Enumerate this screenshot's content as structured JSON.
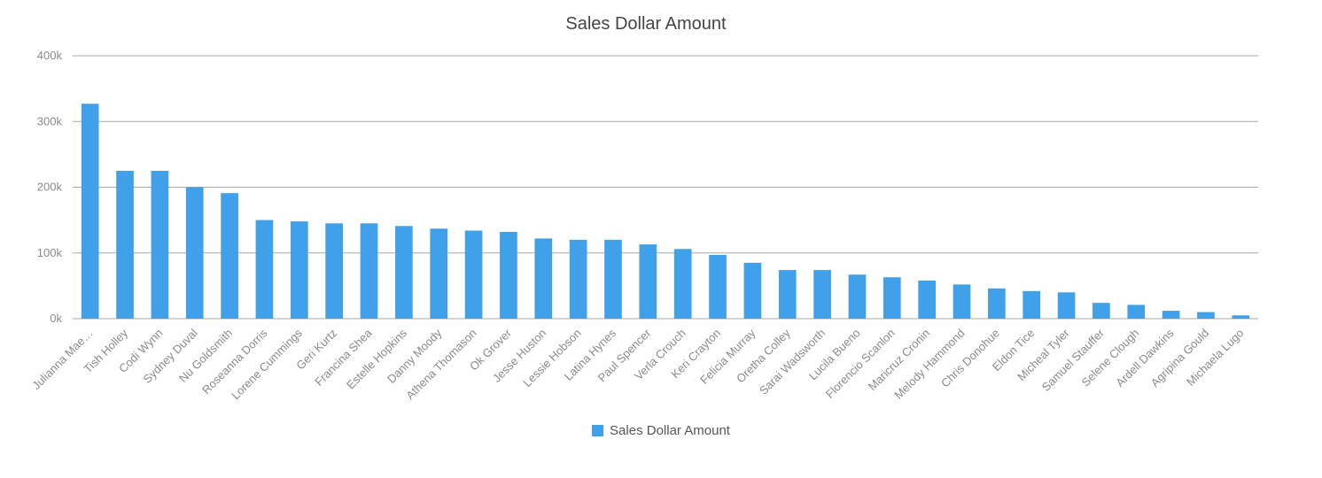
{
  "chart_data": {
    "type": "bar",
    "title": "Sales Dollar Amount",
    "xlabel": "",
    "ylabel": "",
    "ylim": [
      0,
      400000
    ],
    "yticks": [
      0,
      100000,
      200000,
      300000,
      400000
    ],
    "ytick_labels": [
      "0k",
      "100k",
      "200k",
      "300k",
      "400k"
    ],
    "grid": true,
    "legend_position": "bottom",
    "categories": [
      "Julianna Mae…",
      "Tish Holley",
      "Codi Wynn",
      "Sydney Duval",
      "Nu Goldsmith",
      "Roseanna Dorris",
      "Lorene Cummings",
      "Geri Kurtz",
      "Francina Shea",
      "Estelle Hopkins",
      "Danny Moody",
      "Athena Thomason",
      "Ok Grover",
      "Jesse Huston",
      "Lessie Hobson",
      "Latina Hynes",
      "Paul Spencer",
      "Verla Crouch",
      "Keri Crayton",
      "Felicia Murray",
      "Oretha Colley",
      "Sarai Wadsworth",
      "Lucila Bueno",
      "Florencio Scanlon",
      "Maricruz Cronin",
      "Melody Hammond",
      "Chris Donohue",
      "Eldon Tice",
      "Micheal Tyler",
      "Samuel Stauffer",
      "Selene Clough",
      "Ardell Dawkins",
      "Agripina Gould",
      "Michaela Lugo"
    ],
    "series": [
      {
        "name": "Sales Dollar Amount",
        "color": "#40a0ea",
        "values": [
          327000,
          225000,
          225000,
          200000,
          191000,
          150000,
          148000,
          145000,
          145000,
          141000,
          137000,
          134000,
          132000,
          122000,
          120000,
          120000,
          113000,
          106000,
          97000,
          85000,
          74000,
          74000,
          67000,
          63000,
          58000,
          52000,
          46000,
          42000,
          40000,
          24000,
          21000,
          12000,
          10000,
          5000
        ]
      }
    ]
  }
}
